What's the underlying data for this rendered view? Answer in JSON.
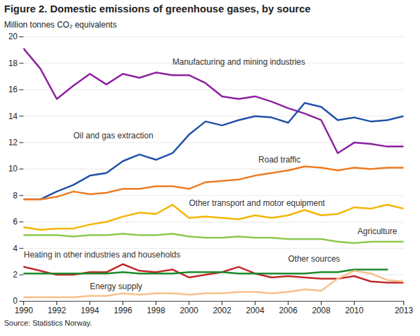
{
  "chart_data": {
    "type": "line",
    "title": "Figure 2. Domestic emissions of greenhouse gases, by source",
    "subtitle": "Million tonnes CO₂ equivalents",
    "source": "Source: Statistics Norway.",
    "x": [
      1990,
      1991,
      1992,
      1993,
      1994,
      1995,
      1996,
      1997,
      1998,
      1999,
      2000,
      2001,
      2002,
      2003,
      2004,
      2005,
      2006,
      2007,
      2008,
      2009,
      2010,
      2011,
      2012,
      2013
    ],
    "xlim": [
      1990,
      2013
    ],
    "xticks": [
      1990,
      1992,
      1994,
      1996,
      1998,
      2000,
      2002,
      2004,
      2006,
      2008,
      2010,
      2013
    ],
    "ylim": [
      0,
      20
    ],
    "yticks": [
      0,
      2,
      4,
      6,
      8,
      10,
      12,
      14,
      16,
      18,
      20
    ],
    "grid": true,
    "series": [
      {
        "name": "Manufacturing and mining industries",
        "color": "#8a1f9e",
        "values": [
          19.1,
          17.6,
          15.3,
          16.3,
          17.2,
          16.4,
          17.2,
          16.9,
          17.3,
          17.1,
          17.1,
          16.5,
          15.5,
          15.3,
          15.5,
          15.1,
          14.6,
          14.2,
          13.7,
          11.2,
          12.0,
          11.9,
          11.7,
          11.7
        ]
      },
      {
        "name": "Oil and gas extraction",
        "color": "#1f4fa8",
        "values": [
          7.7,
          7.7,
          8.3,
          8.8,
          9.5,
          9.7,
          10.6,
          11.1,
          10.7,
          11.2,
          12.6,
          13.6,
          13.3,
          13.7,
          14.0,
          13.9,
          13.5,
          15.0,
          14.7,
          13.7,
          13.9,
          13.6,
          13.7,
          14.0
        ]
      },
      {
        "name": "Road traffic",
        "color": "#f07a1e",
        "values": [
          7.7,
          7.7,
          7.9,
          8.3,
          8.1,
          8.2,
          8.5,
          8.5,
          8.7,
          8.7,
          8.5,
          9.0,
          9.1,
          9.2,
          9.5,
          9.7,
          9.9,
          10.2,
          10.1,
          9.9,
          10.1,
          10.0,
          10.1,
          10.1
        ]
      },
      {
        "name": "Other transport and motor equipment",
        "color": "#f5b400",
        "values": [
          5.6,
          5.4,
          5.5,
          5.5,
          5.8,
          6.0,
          6.4,
          6.7,
          6.6,
          7.3,
          6.3,
          6.4,
          6.3,
          6.2,
          6.5,
          6.3,
          6.5,
          6.9,
          6.5,
          6.6,
          7.1,
          7.0,
          7.3,
          7.0
        ]
      },
      {
        "name": "Agriculture",
        "color": "#8cc850",
        "values": [
          5.0,
          5.0,
          5.0,
          4.9,
          5.0,
          5.0,
          5.1,
          5.0,
          5.0,
          5.1,
          4.9,
          4.8,
          4.8,
          4.9,
          4.8,
          4.8,
          4.7,
          4.7,
          4.7,
          4.5,
          4.4,
          4.5,
          4.5,
          4.5
        ]
      },
      {
        "name": "Heating in other industries and households",
        "color": "#c0282a",
        "values": [
          2.6,
          2.3,
          2.0,
          2.0,
          2.2,
          2.2,
          2.8,
          2.3,
          2.2,
          2.4,
          1.8,
          2.0,
          2.2,
          2.6,
          2.1,
          1.8,
          1.9,
          1.8,
          1.7,
          1.7,
          1.9,
          1.5,
          1.4,
          1.4
        ]
      },
      {
        "name": "Other sources",
        "color": "#1a8a2a",
        "values": [
          2.1,
          2.1,
          2.1,
          2.1,
          2.1,
          2.1,
          2.2,
          2.1,
          2.1,
          2.1,
          2.2,
          2.2,
          2.2,
          2.1,
          2.1,
          2.1,
          2.1,
          2.1,
          2.2,
          2.2,
          2.4,
          2.4,
          2.4,
          null
        ]
      },
      {
        "name": "Energy supply",
        "color": "#f7c08a",
        "values": [
          0.3,
          0.3,
          0.3,
          0.3,
          0.4,
          0.4,
          0.6,
          0.5,
          0.6,
          0.6,
          0.5,
          0.6,
          0.6,
          0.7,
          0.7,
          0.6,
          0.7,
          0.9,
          0.8,
          1.7,
          2.3,
          2.1,
          1.6,
          1.5
        ]
      }
    ]
  }
}
